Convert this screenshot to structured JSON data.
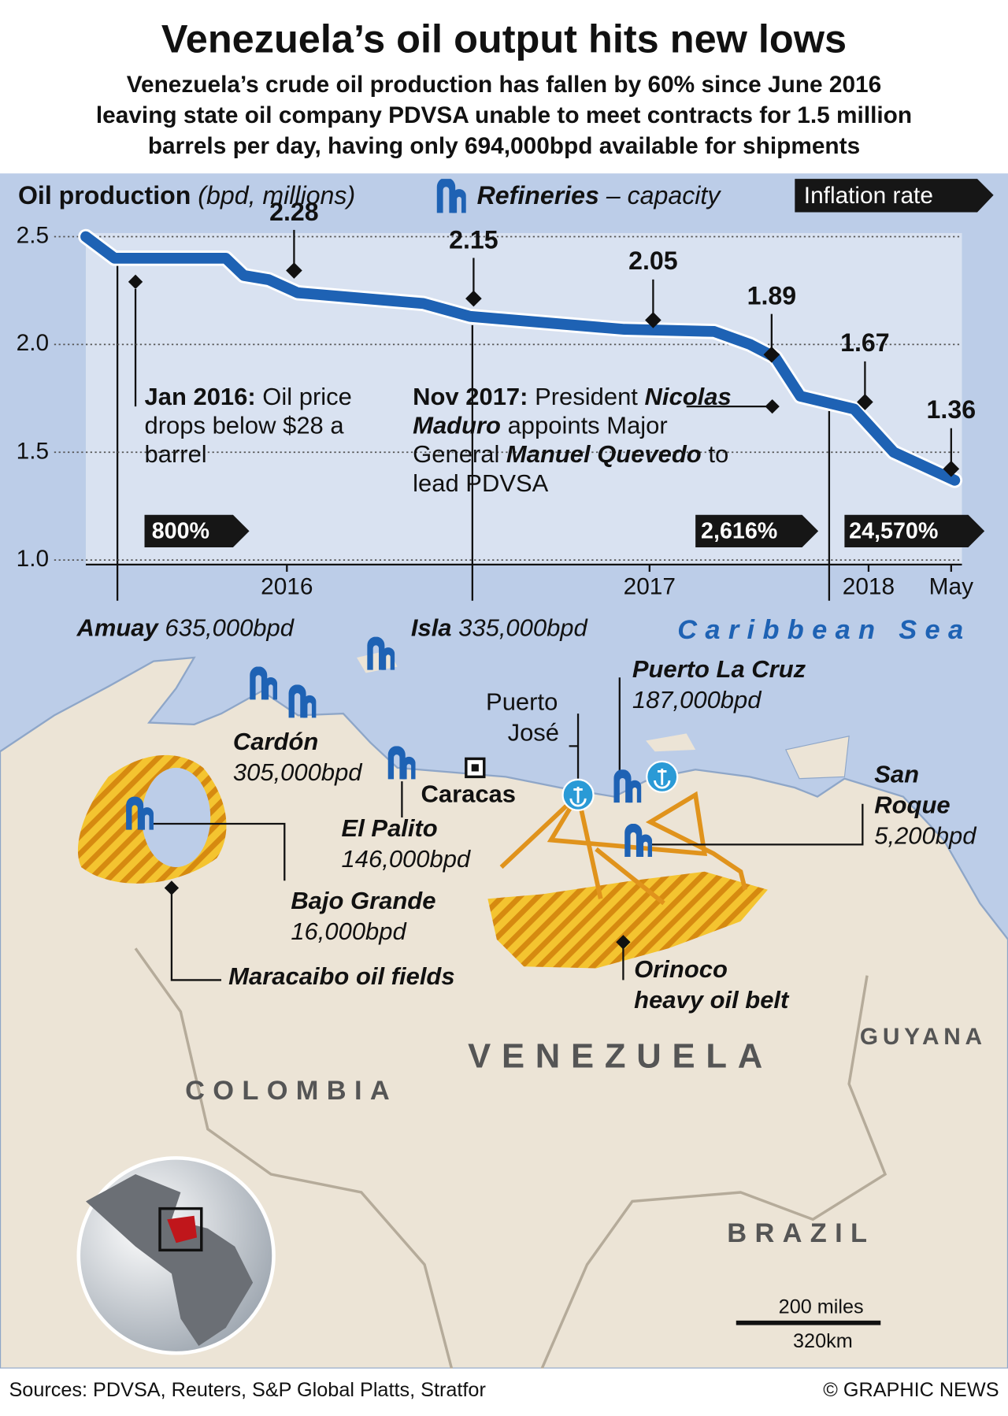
{
  "header": {
    "title": "Venezuela’s oil output hits new lows",
    "subtitle_lines": [
      "Venezuela’s crude oil production has fallen by 60% since June 2016",
      "leaving state oil company PDVSA unable to meet contracts for 1.5 million",
      "barrels per day, having only 694,000bpd available for shipments"
    ]
  },
  "legend": {
    "refineries": "Refineries",
    "refineries_note": "– capacity",
    "inflation": "Inflation rate"
  },
  "chart_data": {
    "type": "line",
    "y_label": "Oil production",
    "y_unit": "(bpd, millions)",
    "color": "#1e62b4",
    "x": [
      2015.94,
      2016.02,
      2016.33,
      2016.38,
      2016.45,
      2016.53,
      2016.88,
      2017.01,
      2017.44,
      2017.69,
      2017.79,
      2017.86,
      2017.93,
      2018.08,
      2018.19,
      2018.36
    ],
    "values": [
      2.5,
      2.4,
      2.4,
      2.32,
      2.3,
      2.24,
      2.19,
      2.13,
      2.07,
      2.06,
      2.0,
      1.94,
      1.76,
      1.7,
      1.5,
      1.37
    ],
    "xlim": [
      2015.94,
      2018.38
    ],
    "xticks": [
      {
        "value": 2016.5,
        "label": "2016"
      },
      {
        "value": 2017.51,
        "label": "2017"
      },
      {
        "value": 2018.12,
        "label": "2018"
      },
      {
        "value": 2018.35,
        "label": "May"
      }
    ],
    "ylim": [
      1,
      2.5
    ],
    "yticks": [
      2.5,
      {
        "value": 2,
        "label": "2.0"
      },
      1.5,
      {
        "value": 1,
        "label": "1.0"
      }
    ],
    "grid": true,
    "callouts": [
      {
        "x": 2016.52,
        "value": 2.28
      },
      {
        "x": 2017.02,
        "value": 2.15
      },
      {
        "x": 2017.52,
        "value": 2.05
      },
      {
        "x": 2017.85,
        "value": 1.89
      },
      {
        "x": 2018.11,
        "value": 1.67
      },
      {
        "x": 2018.35,
        "value": 1.36
      }
    ],
    "events": [
      {
        "parts": [
          "Jan 2016:",
          " Oil price drops below $28 a barrel"
        ]
      },
      {
        "parts": [
          "Nov 2017:",
          " President ",
          "Nicolas Maduro",
          " appoints Major General ",
          "Manuel Quevedo",
          " to lead PDVSA"
        ]
      }
    ],
    "inflation_labels": [
      "800%",
      "2,616%",
      "24,570%"
    ]
  },
  "map": {
    "sea": "Caribbean Sea",
    "countries": [
      "VENEZUELA",
      "COLOMBIA",
      "GUYANA",
      "BRAZIL"
    ],
    "refineries": [
      {
        "name": "Amuay",
        "capacity": "635,000bpd"
      },
      {
        "name": "Isla",
        "capacity": "335,000bpd"
      },
      {
        "name": "Cardón",
        "capacity": "305,000bpd"
      },
      {
        "name": "El Palito",
        "capacity": "146,000bpd"
      },
      {
        "name": "Bajo Grande",
        "capacity": "16,000bpd"
      },
      {
        "name": "Puerto La Cruz",
        "capacity": "187,000bpd"
      },
      {
        "name_lines": [
          "San",
          "Roque"
        ],
        "capacity": "5,200bpd"
      }
    ],
    "places": {
      "capital": "Caracas",
      "port_lines": [
        "Puerto",
        "José"
      ]
    },
    "oil_fields": {
      "maracaibo": "Maracaibo oil fields",
      "orinoco_lines": [
        "Orinoco",
        "heavy oil belt"
      ]
    },
    "scale": [
      "200 miles",
      "320km"
    ]
  },
  "footer": {
    "sources": "Sources: PDVSA, Reuters, S&P Global Platts, Stratfor",
    "credit": "© GRAPHIC NEWS"
  }
}
